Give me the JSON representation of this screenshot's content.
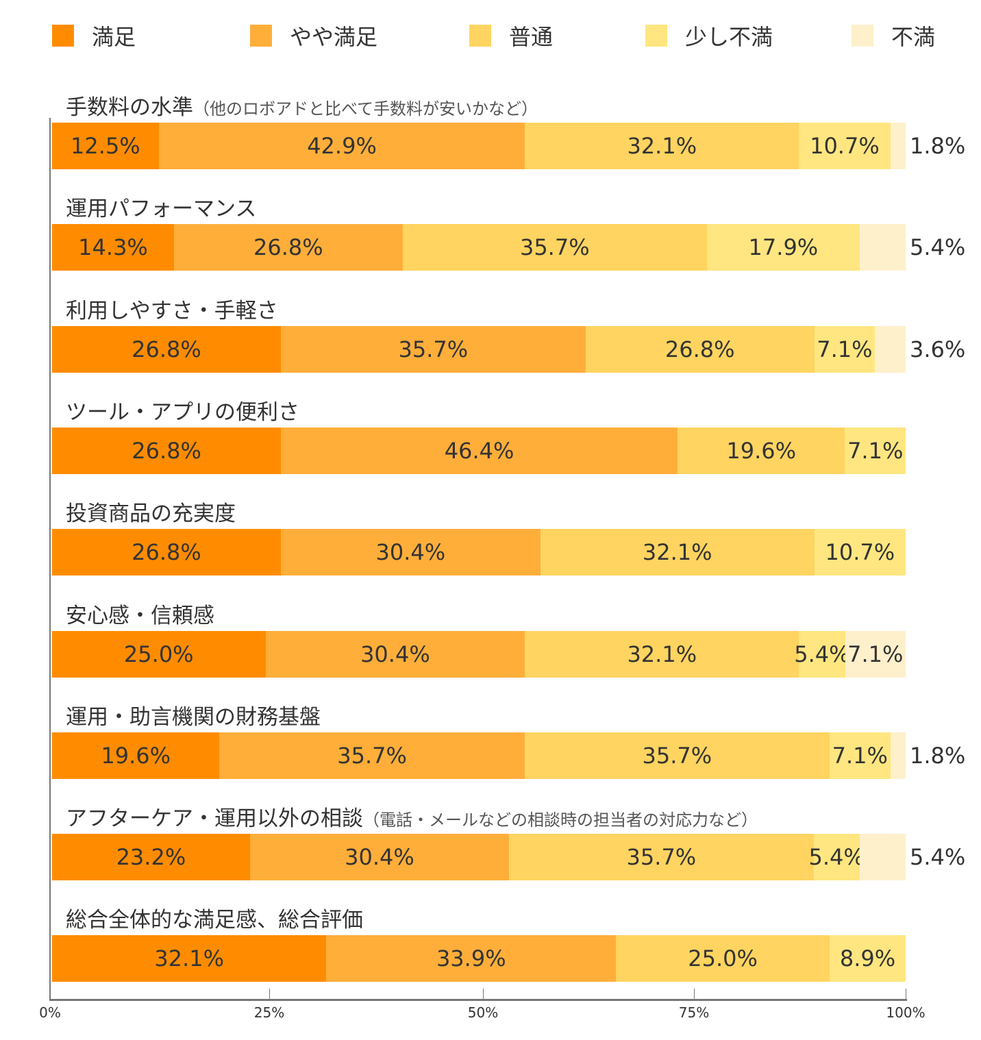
{
  "chart_data": {
    "type": "bar",
    "orientation": "horizontal",
    "stacked": true,
    "legend_position": "top",
    "grid": false,
    "xlim": [
      0,
      100
    ],
    "x_ticks": [
      "0%",
      "25%",
      "50%",
      "75%",
      "100%"
    ],
    "series": [
      {
        "name": "満足",
        "color": "#FF8C00",
        "values": [
          12.5,
          14.3,
          26.8,
          26.8,
          26.8,
          25.0,
          19.6,
          23.2,
          32.1
        ]
      },
      {
        "name": "やや満足",
        "color": "#FFAE3A",
        "values": [
          42.9,
          26.8,
          35.7,
          46.4,
          30.4,
          30.4,
          35.7,
          30.4,
          33.9
        ]
      },
      {
        "name": "普通",
        "color": "#FFD460",
        "values": [
          32.1,
          35.7,
          26.8,
          19.6,
          32.1,
          32.1,
          35.7,
          35.7,
          25.0
        ]
      },
      {
        "name": "少し不満",
        "color": "#FFE680",
        "values": [
          10.7,
          17.9,
          7.1,
          7.1,
          10.7,
          5.4,
          7.1,
          5.4,
          8.9
        ]
      },
      {
        "name": "不満",
        "color": "#FFF0CC",
        "values": [
          1.8,
          5.4,
          3.6,
          null,
          null,
          7.1,
          1.8,
          5.4,
          null
        ]
      }
    ],
    "categories": [
      {
        "label": "手数料の水準",
        "note": "（他のロボアドと比べて手数料が安いかなど）"
      },
      {
        "label": "運用パフォーマンス",
        "note": ""
      },
      {
        "label": "利用しやすさ・手軽さ",
        "note": ""
      },
      {
        "label": "ツール・アプリの便利さ",
        "note": ""
      },
      {
        "label": "投資商品の充実度",
        "note": ""
      },
      {
        "label": "安心感・信頼感",
        "note": ""
      },
      {
        "label": "運用・助言機関の財務基盤",
        "note": ""
      },
      {
        "label": "アフターケア・運用以外の相談",
        "note": "（電話・メールなどの相談時の担当者の対応力など）"
      },
      {
        "label": "総合全体的な満足感、総合評価",
        "note": ""
      }
    ]
  }
}
